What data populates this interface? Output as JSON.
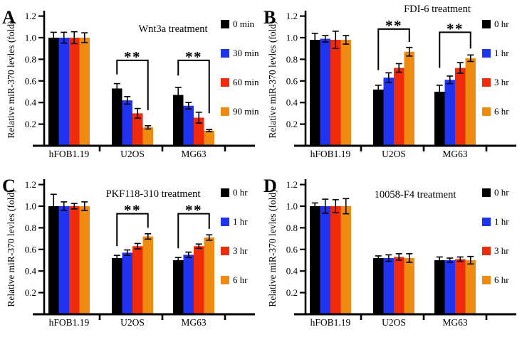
{
  "page": {
    "background": "#ffffff"
  },
  "chart_data": [
    {
      "type": "bar",
      "panel": "A",
      "title": "Wnt3a treatment",
      "title_pos": [
        243,
        45
      ],
      "ylabel": "Relative miR-370 levles (fold)",
      "categories": [
        "hFOB1.19",
        "U2OS",
        "MG63"
      ],
      "yticks": [
        "0.2",
        "0.4",
        "0.6",
        "0.8",
        "1.0",
        "1.2"
      ],
      "ylim": [
        0,
        1.25
      ],
      "legend_position": "right",
      "grid": false,
      "series": [
        {
          "name": "0 min",
          "color": "#000000",
          "values": [
            1.0,
            0.53,
            0.47
          ],
          "errors": [
            0.05,
            0.045,
            0.07
          ]
        },
        {
          "name": "30 min",
          "color": "#1e34f2",
          "values": [
            1.0,
            0.42,
            0.37
          ],
          "errors": [
            0.05,
            0.035,
            0.03
          ]
        },
        {
          "name": "60 min",
          "color": "#f02a0c",
          "values": [
            1.0,
            0.3,
            0.26
          ],
          "errors": [
            0.055,
            0.045,
            0.05
          ]
        },
        {
          "name": "90 min",
          "color": "#ef8b11",
          "values": [
            1.0,
            0.17,
            0.14
          ],
          "errors": [
            0.045,
            0.015,
            0.01
          ]
        }
      ],
      "significance": [
        {
          "label": "**",
          "category": 1,
          "from_series": 0,
          "to_series": 3,
          "top": 0.79,
          "leg_from": 0.66,
          "leg_to": 0.33
        },
        {
          "label": "**",
          "category": 2,
          "from_series": 0,
          "to_series": 3,
          "top": 0.79,
          "leg_from": 0.65,
          "leg_to": 0.3
        }
      ]
    },
    {
      "type": "bar",
      "panel": "B",
      "title": "FDI-6 treatment",
      "title_pos": [
        247,
        17
      ],
      "ylabel": "Relative miR-370 levles (fold)",
      "categories": [
        "hFOB1.19",
        "U2OS",
        "MG63"
      ],
      "yticks": [
        "0.2",
        "0.4",
        "0.6",
        "0.8",
        "1.0",
        "1.2"
      ],
      "ylim": [
        0,
        1.25
      ],
      "legend_position": "right",
      "grid": false,
      "series": [
        {
          "name": "0 hr",
          "color": "#000000",
          "values": [
            0.98,
            0.52,
            0.5
          ],
          "errors": [
            0.06,
            0.04,
            0.06
          ]
        },
        {
          "name": "1 hr",
          "color": "#1e34f2",
          "values": [
            0.99,
            0.63,
            0.61
          ],
          "errors": [
            0.03,
            0.045,
            0.035
          ]
        },
        {
          "name": "3 hr",
          "color": "#f02a0c",
          "values": [
            0.98,
            0.72,
            0.72
          ],
          "errors": [
            0.08,
            0.04,
            0.05
          ]
        },
        {
          "name": "6 hr",
          "color": "#ef8b11",
          "values": [
            0.98,
            0.87,
            0.81
          ],
          "errors": [
            0.04,
            0.04,
            0.03
          ]
        }
      ],
      "significance": [
        {
          "label": "**",
          "category": 1,
          "from_series": 0,
          "to_series": 3,
          "top": 1.08,
          "leg_from": 0.7,
          "leg_to": 0.96
        },
        {
          "label": "**",
          "category": 2,
          "from_series": 0,
          "to_series": 3,
          "top": 1.05,
          "leg_from": 0.72,
          "leg_to": 0.9
        }
      ]
    },
    {
      "type": "bar",
      "panel": "C",
      "title": "PKF118-310 treatment",
      "title_pos": [
        215,
        40
      ],
      "ylabel": "Relative miR-370 levles (fold)",
      "categories": [
        "hFOB1.19",
        "U2OS",
        "MG63"
      ],
      "yticks": [
        "0.2",
        "0.4",
        "0.6",
        "0.8",
        "1.0",
        "1.2"
      ],
      "ylim": [
        0,
        1.25
      ],
      "legend_position": "right",
      "grid": false,
      "series": [
        {
          "name": "0 hr",
          "color": "#000000",
          "values": [
            1.0,
            0.52,
            0.5
          ],
          "errors": [
            0.11,
            0.025,
            0.025
          ]
        },
        {
          "name": "1 hr",
          "color": "#1e34f2",
          "values": [
            1.0,
            0.57,
            0.55
          ],
          "errors": [
            0.04,
            0.025,
            0.025
          ]
        },
        {
          "name": "3 hr",
          "color": "#f02a0c",
          "values": [
            1.0,
            0.63,
            0.63
          ],
          "errors": [
            0.025,
            0.025,
            0.02
          ]
        },
        {
          "name": "6 hr",
          "color": "#ef8b11",
          "values": [
            1.0,
            0.72,
            0.71
          ],
          "errors": [
            0.04,
            0.025,
            0.025
          ]
        }
      ],
      "significance": [
        {
          "label": "**",
          "category": 1,
          "from_series": 0,
          "to_series": 3,
          "top": 0.93,
          "leg_from": 0.63,
          "leg_to": 0.8
        },
        {
          "label": "**",
          "category": 2,
          "from_series": 0,
          "to_series": 3,
          "top": 0.93,
          "leg_from": 0.61,
          "leg_to": 0.79
        }
      ]
    },
    {
      "type": "bar",
      "panel": "D",
      "title": "10058-F4 treatment",
      "title_pos": [
        216,
        41
      ],
      "ylabel": "Relative miR-370 levles (fold)",
      "categories": [
        "hFOB1.19",
        "U2OS",
        "MG63"
      ],
      "yticks": [
        "0.2",
        "0.4",
        "0.6",
        "0.8",
        "1.0",
        "1.2"
      ],
      "ylim": [
        0,
        1.25
      ],
      "legend_position": "right",
      "grid": false,
      "series": [
        {
          "name": "0 hr",
          "color": "#000000",
          "values": [
            1.0,
            0.52,
            0.5
          ],
          "errors": [
            0.03,
            0.02,
            0.03
          ]
        },
        {
          "name": "1 hr",
          "color": "#1e34f2",
          "values": [
            1.0,
            0.52,
            0.5
          ],
          "errors": [
            0.065,
            0.03,
            0.02
          ]
        },
        {
          "name": "3 hr",
          "color": "#f02a0c",
          "values": [
            1.0,
            0.53,
            0.51
          ],
          "errors": [
            0.06,
            0.03,
            0.02
          ]
        },
        {
          "name": "6 hr",
          "color": "#ef8b11",
          "values": [
            1.0,
            0.52,
            0.5
          ],
          "errors": [
            0.07,
            0.04,
            0.035
          ]
        }
      ],
      "significance": []
    }
  ]
}
